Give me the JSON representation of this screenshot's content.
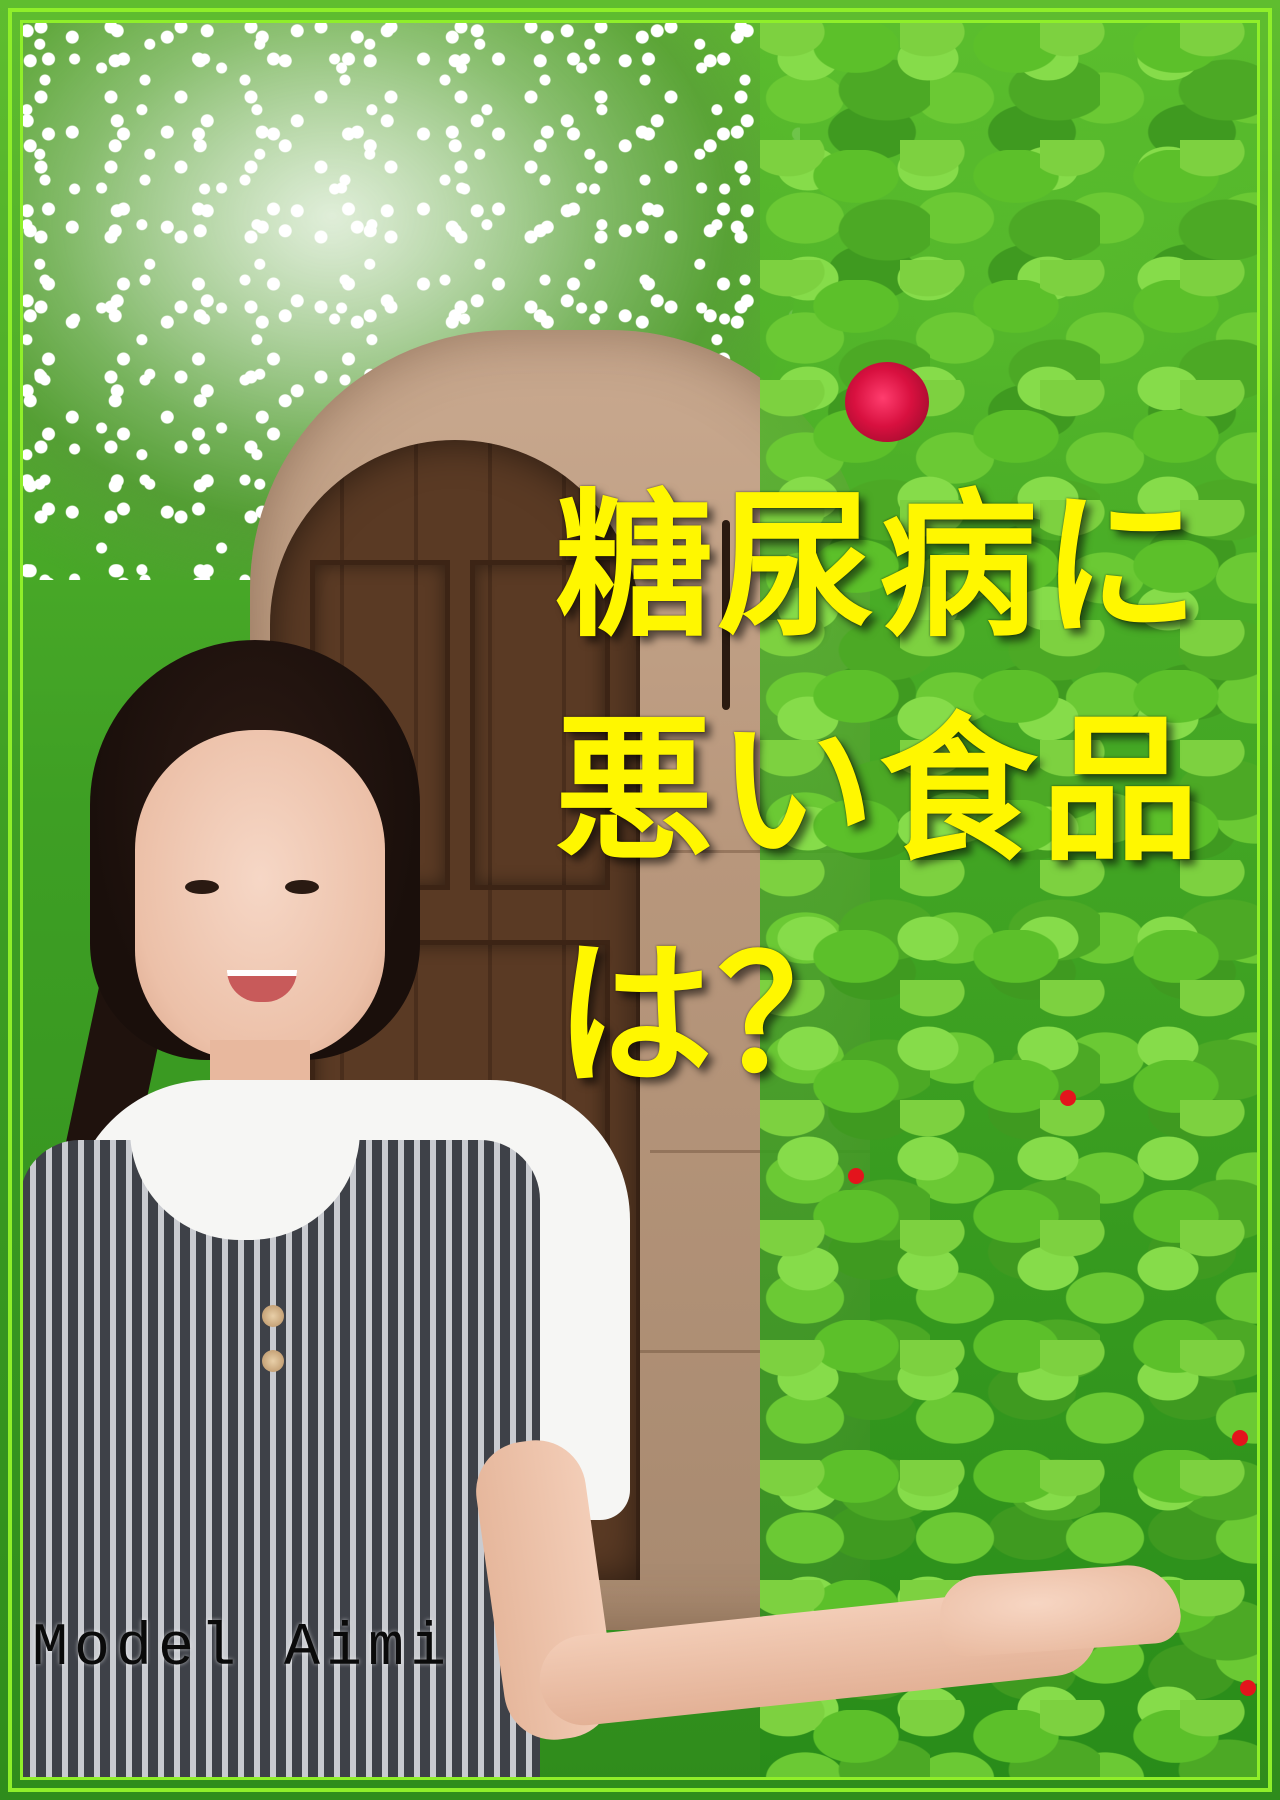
{
  "cover": {
    "headline_lines": [
      "糖尿病に",
      "悪い食品",
      "は？"
    ],
    "watermark": "Model Aimi"
  },
  "colors": {
    "headline": "#fff700",
    "border": "#8fef2a",
    "watermark": "#0a0a0a"
  },
  "icons": [
    "jasmine-flowers",
    "red-rose",
    "ivy-leaves",
    "wooden-door",
    "model-woman"
  ]
}
